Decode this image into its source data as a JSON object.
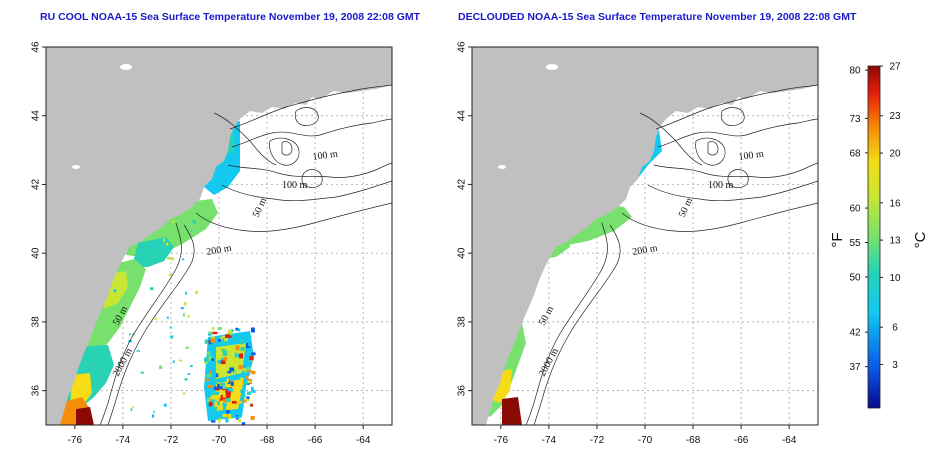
{
  "panels": [
    {
      "title": "RU COOL NOAA-15 Sea Surface Temperature November 19, 2008 22:08 GMT"
    },
    {
      "title": "DECLOUDED NOAA-15 Sea Surface Temperature November 19, 2008 22:08 GMT"
    }
  ],
  "map": {
    "lon_ticks": [
      "-76",
      "-74",
      "-72",
      "-70",
      "-68",
      "-66",
      "-64"
    ],
    "lat_ticks": [
      "36",
      "38",
      "40",
      "42",
      "44",
      "46"
    ],
    "lon_range": [
      -77.2,
      -62.8
    ],
    "lat_range": [
      35,
      46
    ],
    "contour_labels": [
      "100 m",
      "100 m",
      "50 m",
      "200 m",
      "50 m",
      "2000 m"
    ],
    "land_color": "#c0c0c0",
    "grid": true
  },
  "colorbar": {
    "fahrenheit_ticks": [
      "80",
      "73",
      "68",
      "60",
      "55",
      "50",
      "42",
      "37"
    ],
    "celsius_ticks": [
      "27",
      "23",
      "20",
      "16",
      "13",
      "10",
      "6",
      "3"
    ],
    "fahrenheit_unit": "°F",
    "celsius_unit": "°C",
    "colors": [
      "#0a0a8c",
      "#0a5ae6",
      "#14c8f0",
      "#28d2b4",
      "#78e16e",
      "#c8e632",
      "#f5dc14",
      "#f58c0a",
      "#e61e0a",
      "#8c0a05"
    ]
  }
}
